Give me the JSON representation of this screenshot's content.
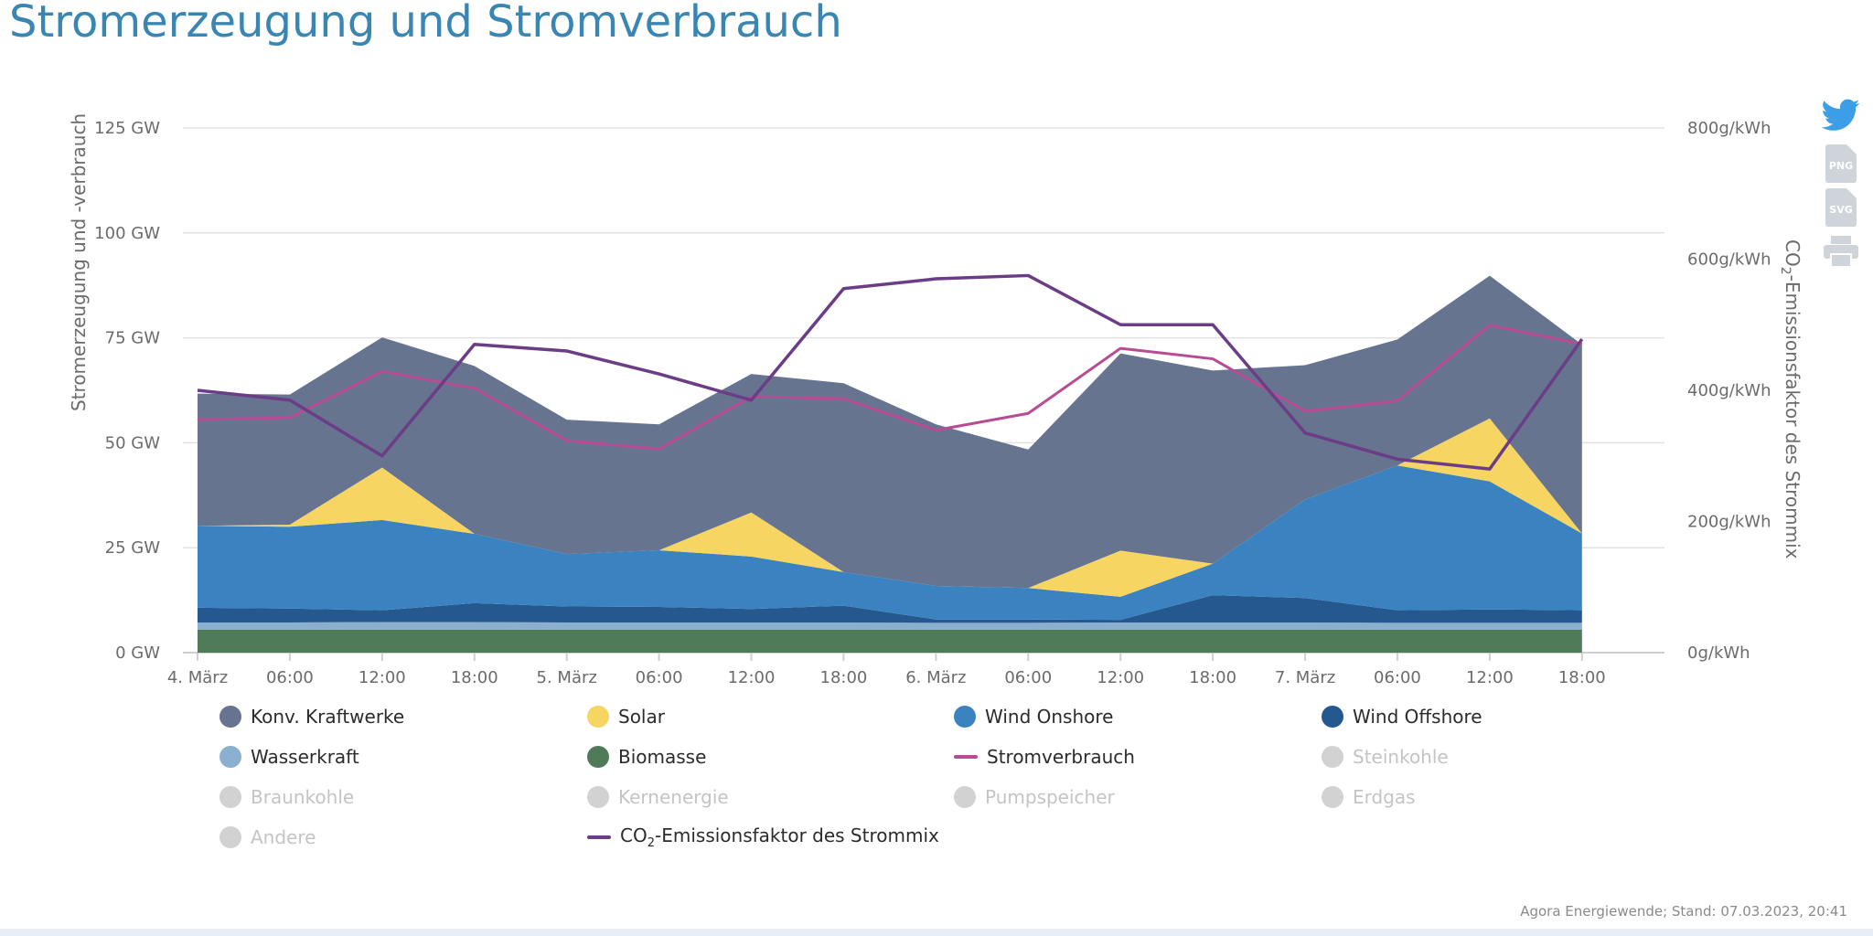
{
  "title": "Stromerzeugung und Stromverbrauch",
  "source": "Agora Energiewende; Stand: 07.03.2023, 20:41",
  "icons": [
    "twitter-icon",
    "png-download-icon",
    "svg-download-icon",
    "print-icon"
  ],
  "icon_labels": {
    "png": "PNG",
    "svg": "SVG"
  },
  "chart_data": {
    "type": "area",
    "xlabel": "",
    "ylabel": "Stromerzeugung und -verbrauch",
    "y2label_parts": [
      "CO",
      "2",
      "-Emissionsfaktor des Strommix"
    ],
    "ylim": [
      0,
      125
    ],
    "y2lim": [
      0,
      800
    ],
    "yticks": [
      "0 GW",
      "25 GW",
      "50 GW",
      "75 GW",
      "100 GW",
      "125 GW"
    ],
    "y2ticks": [
      "0g/kWh",
      "200g/kWh",
      "400g/kWh",
      "600g/kWh",
      "800g/kWh"
    ],
    "x_hours": [
      0,
      6,
      12,
      18,
      24,
      30,
      36,
      42,
      48,
      54,
      60,
      66,
      72,
      78,
      84,
      90
    ],
    "xtick_labels": [
      "4. März",
      "06:00",
      "12:00",
      "18:00",
      "5. März",
      "06:00",
      "12:00",
      "18:00",
      "6. März",
      "06:00",
      "12:00",
      "18:00",
      "7. März",
      "06:00",
      "12:00",
      "18:00"
    ],
    "x_start": "2023-03-04 00:00",
    "series": [
      {
        "name": "Biomasse",
        "kind": "stack",
        "color": "#4f7a57",
        "values": [
          5.5,
          5.5,
          5.5,
          5.5,
          5.5,
          5.5,
          5.5,
          5.5,
          5.5,
          5.5,
          5.5,
          5.5,
          5.5,
          5.5,
          5.5,
          5.5
        ]
      },
      {
        "name": "Wasserkraft",
        "kind": "stack",
        "color": "#8aafcf",
        "values": [
          1.7,
          1.7,
          1.8,
          1.8,
          1.7,
          1.7,
          1.7,
          1.7,
          1.6,
          1.6,
          1.7,
          1.7,
          1.7,
          1.6,
          1.6,
          1.6
        ]
      },
      {
        "name": "Wind Offshore",
        "kind": "stack",
        "color": "#24588f",
        "values": [
          3.5,
          3.3,
          2.8,
          4.5,
          3.8,
          3.7,
          3.2,
          4.0,
          0.8,
          0.8,
          0.6,
          6.5,
          5.8,
          3.0,
          3.2,
          3.0
        ]
      },
      {
        "name": "Wind Onshore",
        "kind": "stack",
        "color": "#3b83c0",
        "values": [
          19.5,
          19.5,
          21.5,
          16.5,
          12.5,
          13.5,
          12.5,
          8.0,
          8.0,
          7.5,
          5.5,
          7.5,
          23.5,
          34.5,
          30.5,
          18.3
        ]
      },
      {
        "name": "Solar",
        "kind": "stack",
        "color": "#f7d563",
        "values": [
          0,
          0.5,
          12.5,
          0,
          0,
          0,
          10.5,
          0,
          0,
          0,
          11.0,
          0,
          0,
          0,
          15.0,
          0
        ]
      },
      {
        "name": "Konv. Kraftwerke",
        "kind": "stack",
        "color": "#66748f",
        "values": [
          31.5,
          31.0,
          31.0,
          40.0,
          32.0,
          30.0,
          33.0,
          45.0,
          38.5,
          33.0,
          47.0,
          46.0,
          32.0,
          30.0,
          34.0,
          45.0
        ]
      },
      {
        "name": "Stromverbrauch",
        "kind": "line",
        "axis": "left",
        "color": "#b84b93",
        "values": [
          55.5,
          56.0,
          67.0,
          63.0,
          50.5,
          48.5,
          61.0,
          60.5,
          53.0,
          57.0,
          72.5,
          70.0,
          57.5,
          60.0,
          78.0,
          73.5
        ]
      },
      {
        "name": "CO2-Emissionsfaktor des Strommix",
        "kind": "line",
        "axis": "right",
        "color": "#6b3d86",
        "values": [
          400,
          385,
          300,
          470,
          460,
          425,
          385,
          555,
          570,
          575,
          500,
          500,
          335,
          295,
          280,
          478
        ]
      }
    ],
    "legend": [
      {
        "label": "Konv. Kraftwerke",
        "color": "#66748f",
        "shape": "dot",
        "active": true
      },
      {
        "label": "Solar",
        "color": "#f7d563",
        "shape": "dot",
        "active": true
      },
      {
        "label": "Wind Onshore",
        "color": "#3b83c0",
        "shape": "dot",
        "active": true
      },
      {
        "label": "Wind Offshore",
        "color": "#24588f",
        "shape": "dot",
        "active": true
      },
      {
        "label": "Wasserkraft",
        "color": "#8aafcf",
        "shape": "dot",
        "active": true
      },
      {
        "label": "Biomasse",
        "color": "#4f7a57",
        "shape": "dot",
        "active": true
      },
      {
        "label": "Stromverbrauch",
        "color": "#b84b93",
        "shape": "line",
        "active": true
      },
      {
        "label": "Steinkohle",
        "color": "#d2d2d2",
        "shape": "dot",
        "active": false
      },
      {
        "label": "Braunkohle",
        "color": "#d2d2d2",
        "shape": "dot",
        "active": false
      },
      {
        "label": "Kernenergie",
        "color": "#d2d2d2",
        "shape": "dot",
        "active": false
      },
      {
        "label": "Pumpspeicher",
        "color": "#d2d2d2",
        "shape": "dot",
        "active": false
      },
      {
        "label": "Erdgas",
        "color": "#d2d2d2",
        "shape": "dot",
        "active": false
      },
      {
        "label": "Andere",
        "color": "#d2d2d2",
        "shape": "dot",
        "active": false
      },
      {
        "label": "CO2-Emissionsfaktor des Strommix",
        "label_parts": [
          "CO",
          "2",
          "-Emissionsfaktor des Strommix"
        ],
        "color": "#6b3d86",
        "shape": "line",
        "active": true
      }
    ],
    "grid": true,
    "legend_position": "bottom"
  }
}
